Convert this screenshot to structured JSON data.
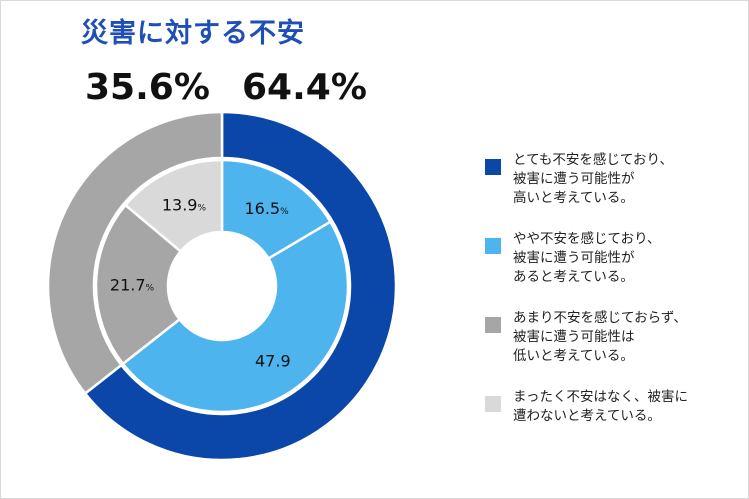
{
  "chart_data": {
    "type": "pie",
    "title": "災害に対する不安",
    "outer_ring": {
      "segments": [
        {
          "label_text": "64.4%",
          "value": 64.4,
          "color": "#0a47a8"
        },
        {
          "label_text": "35.6%",
          "value": 35.6,
          "color": "#a6a6a6"
        }
      ]
    },
    "inner_ring": {
      "segments": [
        {
          "value": 16.5,
          "number": "16.5",
          "unit": "%",
          "color": "#4db4ee",
          "label_color": "#111111"
        },
        {
          "value": 47.9,
          "number": "47.9",
          "unit": "",
          "color": "#4db4ee",
          "label_color": "#111111"
        },
        {
          "value": 21.7,
          "number": "21.7",
          "unit": "%",
          "color": "#a6a6a6",
          "label_color": "#111111"
        },
        {
          "value": 13.9,
          "number": "13.9",
          "unit": "%",
          "color": "#d9d9d9",
          "label_color": "#111111"
        }
      ]
    },
    "legend": [
      {
        "text": "とても不安を感じており、\n被害に遭う可能性が\n高いと考えている。",
        "color": "#0a47a8"
      },
      {
        "text": "やや不安を感じており、\n被害に遭う可能性が\nあると考えている。",
        "color": "#4db4ee"
      },
      {
        "text": "あまり不安を感じておらず、\n被害に遭う可能性は\n低いと考えている。",
        "color": "#a6a6a6"
      },
      {
        "text": "まったく不安はなく、被害に\n遭わないと考えている。",
        "color": "#d9d9d9"
      }
    ]
  }
}
